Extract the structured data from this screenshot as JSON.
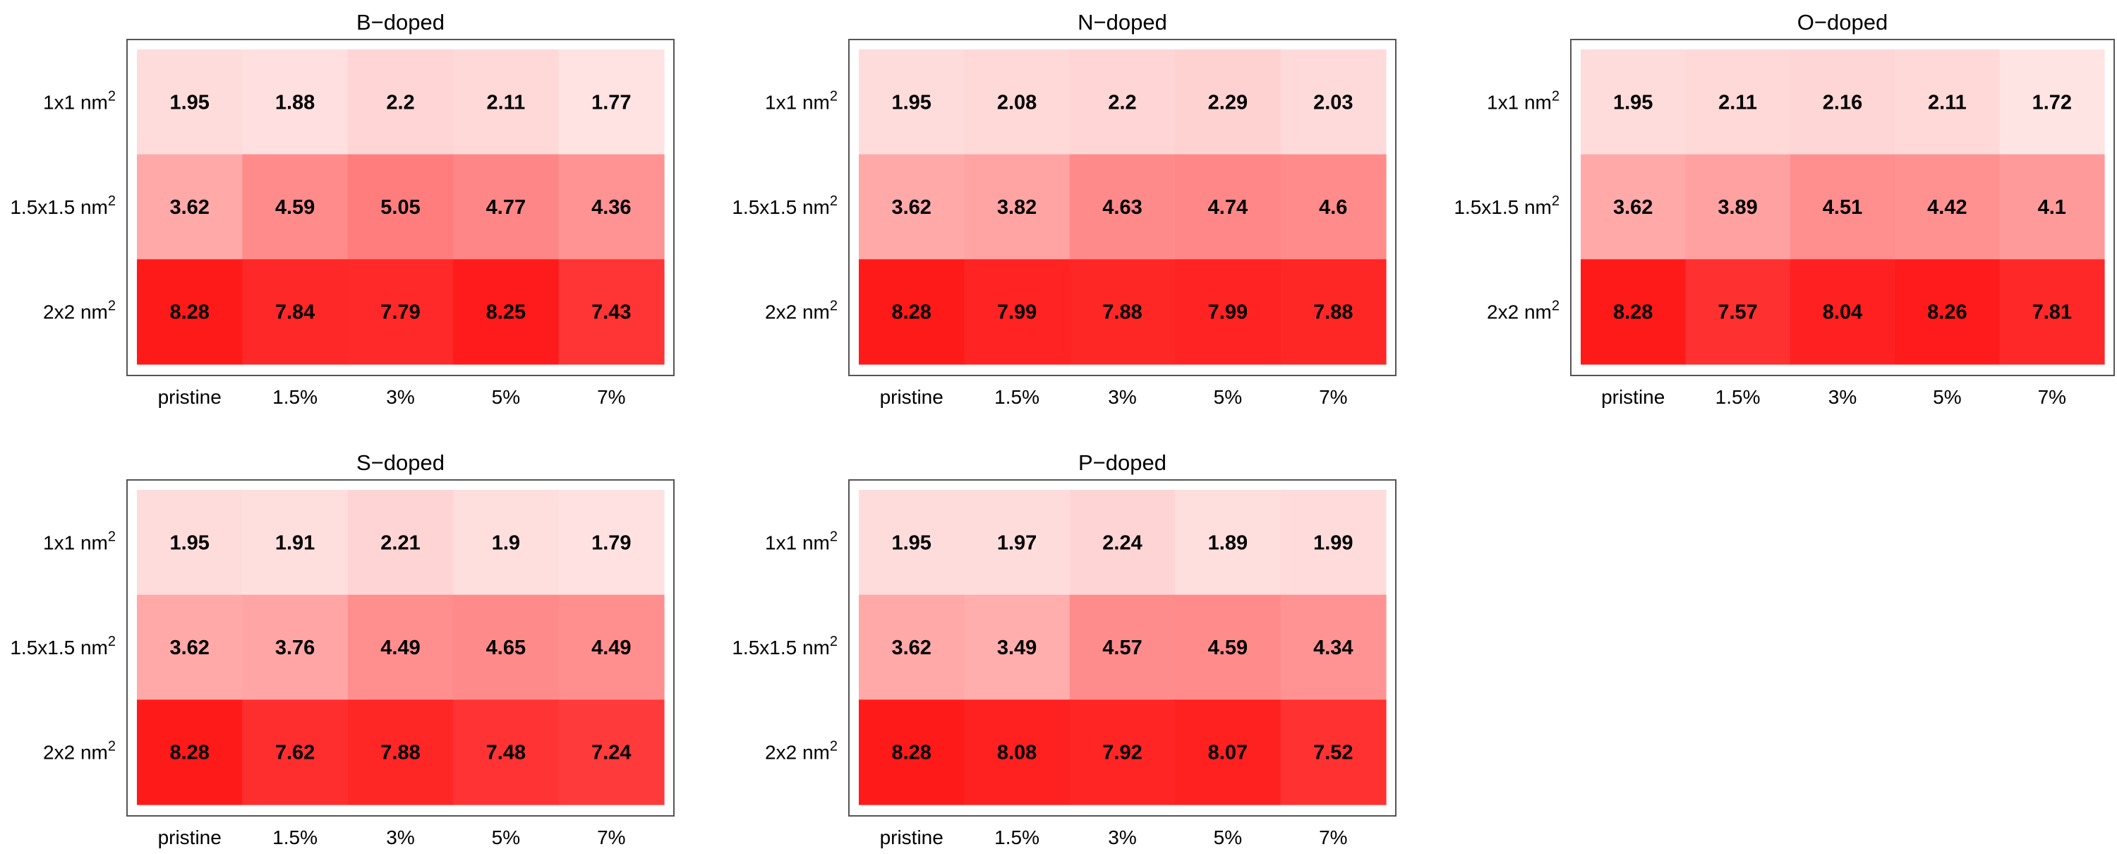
{
  "chart_data": [
    {
      "type": "heatmap",
      "title": "B−doped",
      "categories": [
        "pristine",
        "1.5%",
        "3%",
        "5%",
        "7%"
      ],
      "rows": [
        "1x1 nm",
        "1.5x1.5 nm",
        "2x2 nm"
      ],
      "row_superscript": "2",
      "values": [
        [
          1.95,
          1.88,
          2.2,
          2.11,
          1.77
        ],
        [
          3.62,
          4.59,
          5.05,
          4.77,
          4.36
        ],
        [
          8.28,
          7.84,
          7.79,
          8.25,
          7.43
        ]
      ],
      "colors": {
        "scale_low": "#ffffff",
        "scale_high": "#ff1a1a"
      },
      "value_labels": true
    },
    {
      "type": "heatmap",
      "title": "N−doped",
      "categories": [
        "pristine",
        "1.5%",
        "3%",
        "5%",
        "7%"
      ],
      "rows": [
        "1x1 nm",
        "1.5x1.5 nm",
        "2x2 nm"
      ],
      "row_superscript": "2",
      "values": [
        [
          1.95,
          2.08,
          2.2,
          2.29,
          2.03
        ],
        [
          3.62,
          3.82,
          4.63,
          4.74,
          4.6
        ],
        [
          8.28,
          7.99,
          7.88,
          7.99,
          7.88
        ]
      ],
      "colors": {
        "scale_low": "#ffffff",
        "scale_high": "#ff1a1a"
      },
      "value_labels": true
    },
    {
      "type": "heatmap",
      "title": "O−doped",
      "categories": [
        "pristine",
        "1.5%",
        "3%",
        "5%",
        "7%"
      ],
      "rows": [
        "1x1 nm",
        "1.5x1.5 nm",
        "2x2 nm"
      ],
      "row_superscript": "2",
      "values": [
        [
          1.95,
          2.11,
          2.16,
          2.11,
          1.72
        ],
        [
          3.62,
          3.89,
          4.51,
          4.42,
          4.1
        ],
        [
          8.28,
          7.57,
          8.04,
          8.26,
          7.81
        ]
      ],
      "colors": {
        "scale_low": "#ffffff",
        "scale_high": "#ff1a1a"
      },
      "value_labels": true
    },
    {
      "type": "heatmap",
      "title": "S−doped",
      "categories": [
        "pristine",
        "1.5%",
        "3%",
        "5%",
        "7%"
      ],
      "rows": [
        "1x1 nm",
        "1.5x1.5 nm",
        "2x2 nm"
      ],
      "row_superscript": "2",
      "values": [
        [
          1.95,
          1.91,
          2.21,
          1.9,
          1.79
        ],
        [
          3.62,
          3.76,
          4.49,
          4.65,
          4.49
        ],
        [
          8.28,
          7.62,
          7.88,
          7.48,
          7.24
        ]
      ],
      "colors": {
        "scale_low": "#ffffff",
        "scale_high": "#ff1a1a"
      },
      "value_labels": true
    },
    {
      "type": "heatmap",
      "title": "P−doped",
      "categories": [
        "pristine",
        "1.5%",
        "3%",
        "5%",
        "7%"
      ],
      "rows": [
        "1x1 nm",
        "1.5x1.5 nm",
        "2x2 nm"
      ],
      "row_superscript": "2",
      "values": [
        [
          1.95,
          1.97,
          2.24,
          1.89,
          1.99
        ],
        [
          3.62,
          3.49,
          4.57,
          4.59,
          4.34
        ],
        [
          8.28,
          8.08,
          7.92,
          8.07,
          7.52
        ]
      ],
      "colors": {
        "scale_low": "#ffffff",
        "scale_high": "#ff1a1a"
      },
      "value_labels": true
    }
  ]
}
